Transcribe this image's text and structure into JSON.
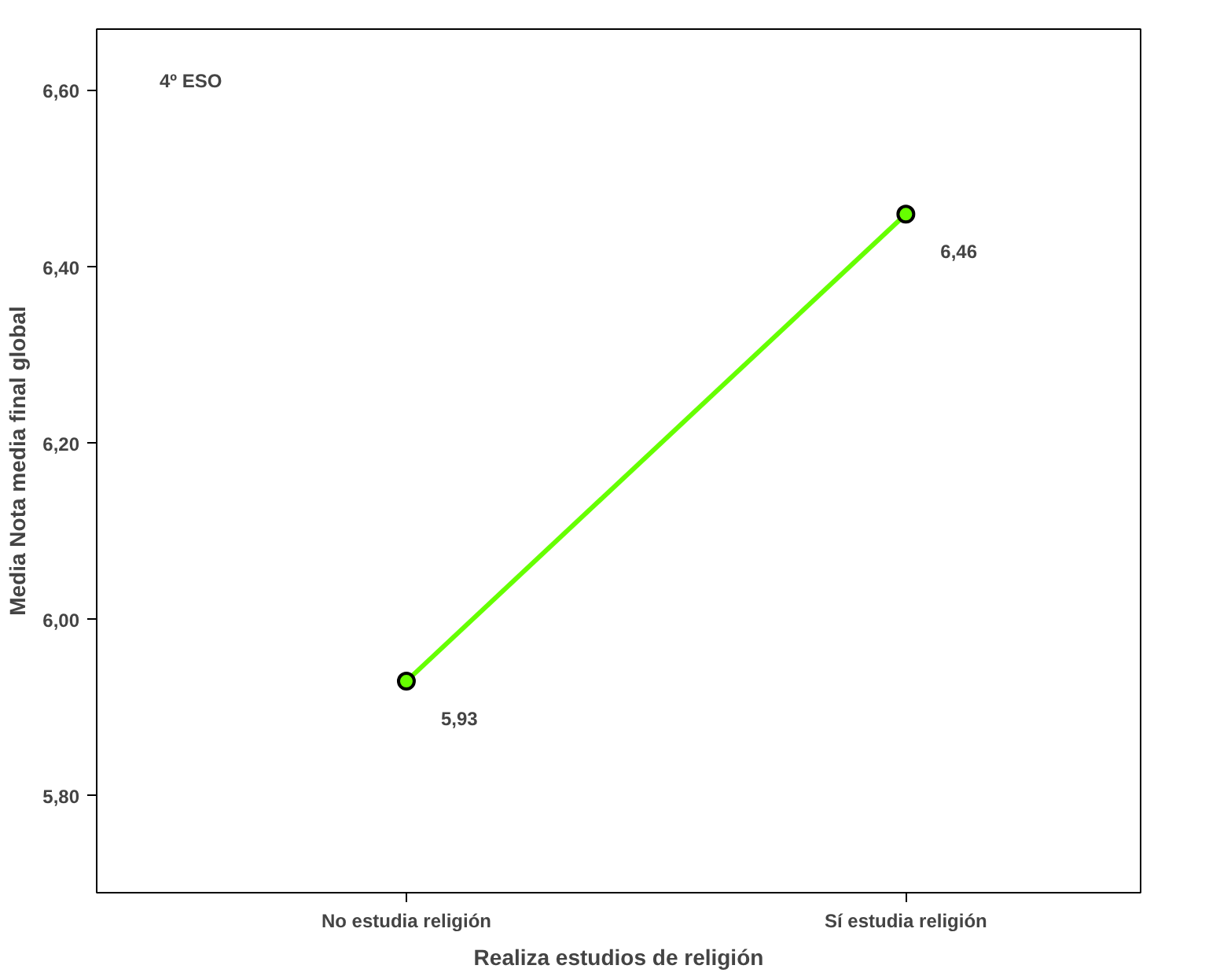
{
  "chart_data": {
    "type": "line",
    "xlabel": "Realiza estudios de religión",
    "ylabel": "Media Nota media final global",
    "categories": [
      "No estudia religión",
      "Sí estudia religión"
    ],
    "series": [
      {
        "color": "#66ff00",
        "values": [
          5.93,
          6.46
        ]
      }
    ],
    "value_labels": [
      "5,93",
      "6,46"
    ],
    "ylim": [
      5.69,
      6.67
    ],
    "yticks": [
      {
        "value": 5.8,
        "label": "5,80"
      },
      {
        "value": 6.0,
        "label": "6,00"
      },
      {
        "value": 6.2,
        "label": "6,20"
      },
      {
        "value": 6.4,
        "label": "6,40"
      },
      {
        "value": 6.6,
        "label": "6,60"
      }
    ],
    "annotations": [
      "4º ESO"
    ],
    "marker": "circle",
    "line_style": "solid",
    "grid": false
  }
}
